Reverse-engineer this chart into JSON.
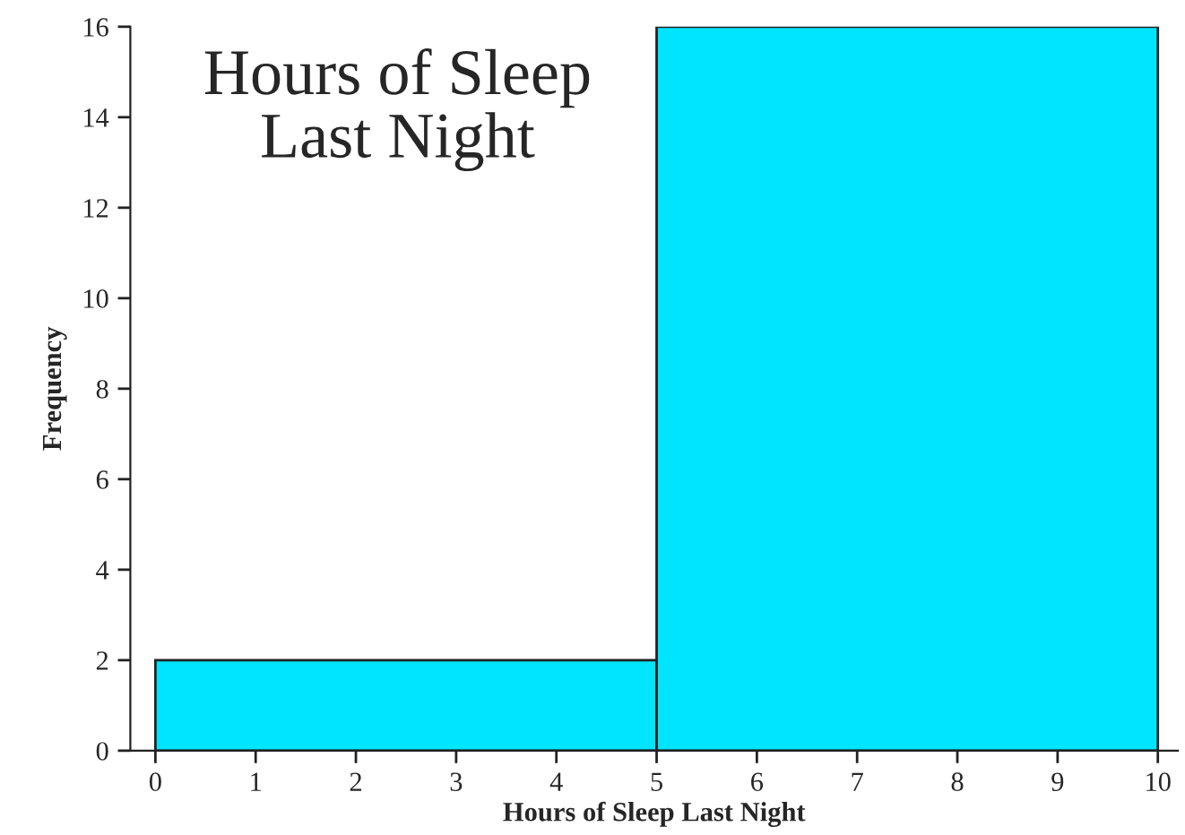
{
  "chart_data": {
    "type": "histogram",
    "title": "Hours of Sleep\nLast Night",
    "xlabel": "Hours of Sleep Last Night",
    "ylabel": "Frequency",
    "bins": [
      0,
      5,
      10
    ],
    "values": [
      2,
      16
    ],
    "color": "#00e5ff",
    "xlim": [
      -0.25,
      10.2
    ],
    "xticks": [
      0,
      1,
      2,
      3,
      4,
      5,
      6,
      7,
      8,
      9,
      10
    ],
    "ylim": [
      0,
      16
    ],
    "yticks": [
      0,
      2,
      4,
      6,
      8,
      10,
      12,
      14,
      16
    ],
    "grid": false
  }
}
